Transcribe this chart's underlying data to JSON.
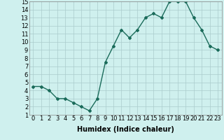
{
  "x": [
    0,
    1,
    2,
    3,
    4,
    5,
    6,
    7,
    8,
    9,
    10,
    11,
    12,
    13,
    14,
    15,
    16,
    17,
    18,
    19,
    20,
    21,
    22,
    23
  ],
  "y": [
    4.5,
    4.5,
    4.0,
    3.0,
    3.0,
    2.5,
    2.0,
    1.5,
    3.0,
    7.5,
    9.5,
    11.5,
    10.5,
    11.5,
    13.0,
    13.5,
    13.0,
    15.0,
    15.0,
    15.0,
    13.0,
    11.5,
    9.5,
    9.0
  ],
  "line_color": "#1a6b5a",
  "marker": "D",
  "marker_size": 2,
  "background_color": "#cff0ee",
  "grid_color": "#aacccc",
  "xlabel": "Humidex (Indice chaleur)",
  "xlabel_fontsize": 7,
  "tick_fontsize": 6,
  "xlim": [
    -0.5,
    23.5
  ],
  "ylim": [
    1,
    15
  ],
  "yticks": [
    1,
    2,
    3,
    4,
    5,
    6,
    7,
    8,
    9,
    10,
    11,
    12,
    13,
    14,
    15
  ],
  "xticks": [
    0,
    1,
    2,
    3,
    4,
    5,
    6,
    7,
    8,
    9,
    10,
    11,
    12,
    13,
    14,
    15,
    16,
    17,
    18,
    19,
    20,
    21,
    22,
    23
  ],
  "line_width": 1.0
}
